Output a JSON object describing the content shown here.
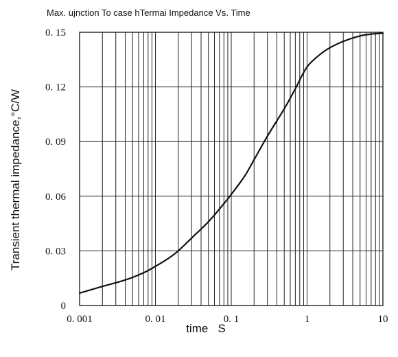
{
  "chart_data": {
    "type": "line",
    "title": "Max. ujnction To case hTermai Impedance Vs. Time",
    "xlabel": "time   S",
    "ylabel": "Transient thermal impedance,°C/W",
    "x_scale": "log",
    "xlim": [
      0.001,
      10
    ],
    "ylim": [
      0,
      0.15
    ],
    "x_ticks": [
      {
        "value": 0.001,
        "label": "0. 001"
      },
      {
        "value": 0.01,
        "label": "0. 01"
      },
      {
        "value": 0.1,
        "label": "0. 1"
      },
      {
        "value": 1,
        "label": "1"
      },
      {
        "value": 10,
        "label": "10"
      }
    ],
    "y_ticks": [
      {
        "value": 0,
        "label": "0"
      },
      {
        "value": 0.03,
        "label": "0. 03"
      },
      {
        "value": 0.06,
        "label": "0. 06"
      },
      {
        "value": 0.09,
        "label": "0. 09"
      },
      {
        "value": 0.12,
        "label": "0. 12"
      },
      {
        "value": 0.15,
        "label": "0. 15"
      }
    ],
    "grid": true,
    "series": [
      {
        "x": [
          0.001,
          0.002,
          0.004,
          0.007,
          0.01,
          0.015,
          0.02,
          0.03,
          0.05,
          0.07,
          0.1,
          0.15,
          0.2,
          0.3,
          0.5,
          0.7,
          1,
          1.5,
          2,
          3,
          5,
          7,
          10
        ],
        "y": [
          0.0068,
          0.0105,
          0.014,
          0.018,
          0.0215,
          0.026,
          0.03,
          0.037,
          0.046,
          0.053,
          0.061,
          0.071,
          0.08,
          0.093,
          0.108,
          0.119,
          0.131,
          0.138,
          0.1415,
          0.145,
          0.148,
          0.149,
          0.1495
        ]
      }
    ]
  }
}
